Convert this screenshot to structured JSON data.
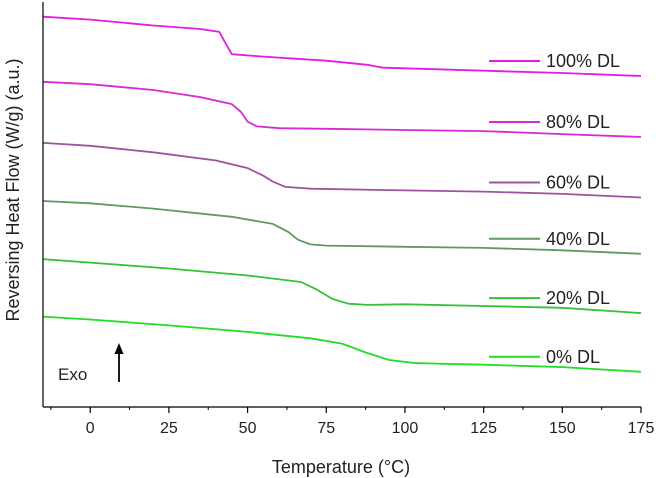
{
  "chart_data": {
    "type": "line",
    "title": "",
    "xlabel": "Temperature (°C)",
    "ylabel": "Reversing Heat Flow (W/g) (a.u.)",
    "xlim": [
      -15,
      175
    ],
    "ylim": [
      0,
      6.9
    ],
    "xticks": [
      0,
      25,
      50,
      75,
      100,
      125,
      150,
      175
    ],
    "yticks_shown": false,
    "grid": false,
    "legend_position": "inline-right",
    "annotation": {
      "text": "Exo",
      "arrow": "up"
    },
    "series": [
      {
        "name": "100% DL",
        "color": "#e619e6",
        "x": [
          -15,
          0,
          20,
          35,
          41,
          43,
          45,
          55,
          75,
          88,
          93,
          100,
          125,
          150,
          175
        ],
        "y": [
          6.65,
          6.6,
          6.5,
          6.44,
          6.39,
          6.2,
          6.01,
          5.97,
          5.9,
          5.83,
          5.78,
          5.77,
          5.73,
          5.69,
          5.64
        ]
      },
      {
        "name": "80% DL",
        "color": "#d62ad6",
        "x": [
          -15,
          0,
          20,
          35,
          45,
          48,
          50,
          53,
          60,
          75,
          100,
          125,
          150,
          175
        ],
        "y": [
          5.54,
          5.5,
          5.4,
          5.28,
          5.16,
          5.02,
          4.86,
          4.78,
          4.75,
          4.74,
          4.72,
          4.7,
          4.65,
          4.6
        ]
      },
      {
        "name": "60% DL",
        "color": "#9c559c",
        "x": [
          -15,
          0,
          20,
          40,
          50,
          55,
          58,
          62,
          70,
          100,
          125,
          150,
          175
        ],
        "y": [
          4.5,
          4.45,
          4.34,
          4.2,
          4.07,
          3.94,
          3.84,
          3.75,
          3.72,
          3.69,
          3.67,
          3.63,
          3.57
        ]
      },
      {
        "name": "40% DL",
        "color": "#5f9a5f",
        "x": [
          -15,
          0,
          20,
          45,
          58,
          63,
          66,
          70,
          75,
          100,
          125,
          150,
          175
        ],
        "y": [
          3.51,
          3.47,
          3.38,
          3.24,
          3.12,
          2.98,
          2.85,
          2.77,
          2.75,
          2.73,
          2.71,
          2.67,
          2.61
        ]
      },
      {
        "name": "20% DL",
        "color": "#35c235",
        "x": [
          -15,
          0,
          25,
          50,
          67,
          72,
          77,
          82,
          88,
          100,
          125,
          150,
          175
        ],
        "y": [
          2.52,
          2.46,
          2.36,
          2.24,
          2.13,
          2.0,
          1.84,
          1.76,
          1.74,
          1.75,
          1.72,
          1.69,
          1.6
        ]
      },
      {
        "name": "0% DL",
        "color": "#22dd22",
        "x": [
          -15,
          0,
          25,
          50,
          70,
          80,
          88,
          95,
          103,
          110,
          125,
          150,
          175
        ],
        "y": [
          1.54,
          1.49,
          1.39,
          1.28,
          1.17,
          1.08,
          0.92,
          0.8,
          0.75,
          0.74,
          0.72,
          0.68,
          0.6
        ]
      }
    ]
  }
}
